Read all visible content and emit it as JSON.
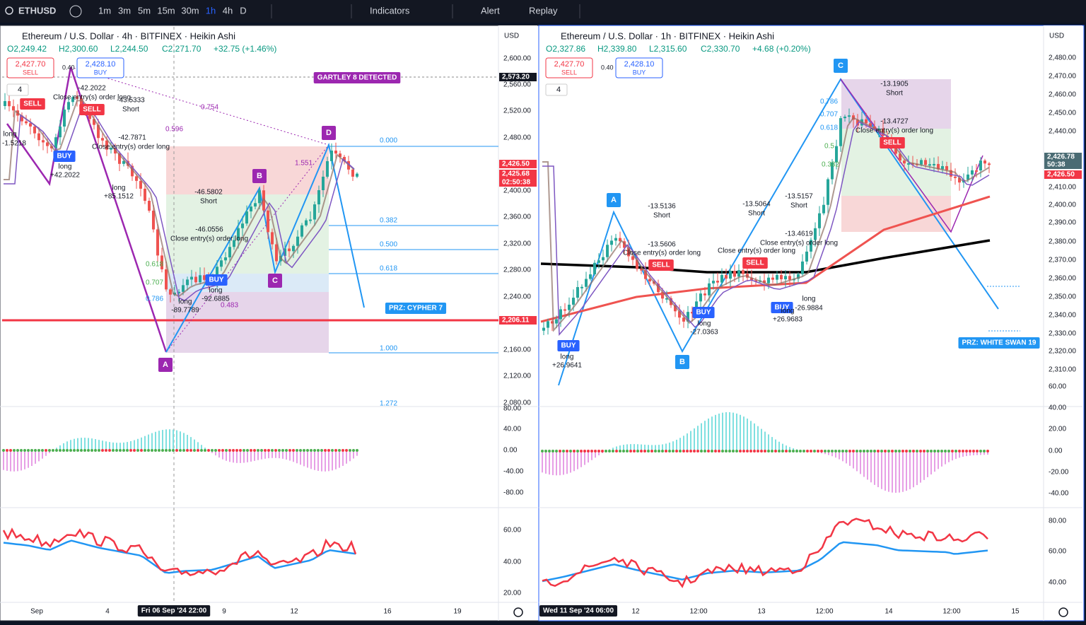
{
  "toolbar": {
    "symbol": "ETHUSD",
    "intervals": [
      "1m",
      "3m",
      "5m",
      "15m",
      "30m",
      "1h",
      "4h",
      "D"
    ],
    "indicators": "Indicators",
    "alert": "Alert",
    "replay": "Replay"
  },
  "panels": [
    {
      "title": "Ethereum / U.S. Dollar · 4h · BITFINEX · Heikin Ashi",
      "ohlc": [
        "O2,249.42",
        "H2,300.60",
        "L2,244.50",
        "C2,271.70",
        "+32.75 (+1.46%)"
      ],
      "sell": {
        "price": "2,427.70",
        "label": "SELL"
      },
      "spread": "0.40",
      "buy": {
        "price": "2,428.10",
        "label": "BUY"
      },
      "layers": "4",
      "currency": "USD",
      "price_axis": [
        "2,600.00",
        "2,560.00",
        "2,520.00",
        "2,480.00",
        "2,440.00",
        "2,400.00",
        "2,360.00",
        "2,320.00",
        "2,280.00",
        "2,240.00",
        "2,160.00",
        "2,120.00",
        "2,080.00"
      ],
      "price_tags": [
        "2,573.20",
        "2,426.50",
        "2,425.68",
        "02:50:38",
        "2,206.11"
      ],
      "pattern_points": [
        "A",
        "B",
        "C",
        "D"
      ],
      "annotations": [
        "GARTLEY 8 DETECTED",
        "PRZ: CYPHER 7",
        "SELL",
        "SELL",
        "BUY",
        "BUY",
        "long",
        "-1.5218",
        "long",
        "+42.2022",
        "-42.2022",
        "Close entry(s) order long",
        "-43.5333",
        "Short",
        "-42.7871",
        "Close entry(s) order long",
        "long",
        "+85.1512",
        "-46.5802",
        "Short",
        "-46.0556",
        "Close entry(s) order long",
        "long",
        "-92.6885",
        "long",
        "-89.7789",
        "0.000",
        "0.382",
        "0.500",
        "0.618",
        "1.000",
        "1.272",
        "0.754",
        "0.596",
        "1.551",
        "0.618",
        "0.707",
        "0.786",
        "0.483"
      ],
      "oscillator_axis": [
        "80.00",
        "40.00",
        "0.00",
        "-40.00",
        "-80.00"
      ],
      "rsi_axis": [
        "60.00",
        "40.00",
        "20.00"
      ],
      "time_axis": [
        "Sep",
        "4",
        "9",
        "12",
        "16",
        "19"
      ],
      "crosshair_time": "Fri 06 Sep '24  22:00"
    },
    {
      "title": "Ethereum / U.S. Dollar · 1h · BITFINEX · Heikin Ashi",
      "ohlc": [
        "O2,327.86",
        "H2,339.80",
        "L2,315.60",
        "C2,330.70",
        "+4.68 (+0.20%)"
      ],
      "sell": {
        "price": "2,427.70",
        "label": "SELL"
      },
      "spread": "0.40",
      "buy": {
        "price": "2,428.10",
        "label": "BUY"
      },
      "layers": "4",
      "currency": "USD",
      "price_axis": [
        "2,480.00",
        "2,470.00",
        "2,460.00",
        "2,450.00",
        "2,440.00",
        "2,410.00",
        "2,400.00",
        "2,390.00",
        "2,380.00",
        "2,370.00",
        "2,360.00",
        "2,350.00",
        "2,340.00",
        "2,330.00",
        "2,320.00",
        "2,310.00"
      ],
      "price_tags": [
        "2,426.78",
        "50:38",
        "2,426.50"
      ],
      "pattern_points": [
        "A",
        "B",
        "C"
      ],
      "annotations": [
        "PRZ: WHITE SWAN 19",
        "SELL",
        "SELL",
        "SELL",
        "BUY",
        "BUY",
        "BUY",
        "-13.5136",
        "Short",
        "-13.5606",
        "Close entry(s) order long",
        "-13.5064",
        "Short",
        "Close entry(s) order long",
        "-13.5157",
        "Short",
        "-13.4619",
        "Close entry(s) order long",
        "-13.1905",
        "Short",
        "-13.4727",
        "Close entry(s) order long",
        "long",
        "-27.0363",
        "long",
        "+26.9683",
        "long",
        "-26.9884",
        "long",
        "+26.9641",
        "0.786",
        "0.707",
        "0.618",
        "0.5",
        "0.382"
      ],
      "oscillator_axis": [
        "60.00",
        "40.00",
        "20.00",
        "0.00",
        "-20.00",
        "-40.00"
      ],
      "rsi_axis": [
        "80.00",
        "60.00",
        "40.00"
      ],
      "time_axis": [
        "12",
        "12:00",
        "13",
        "12:00",
        "14",
        "12:00",
        "15"
      ],
      "crosshair_time": "Wed 11 Sep '24  06:00"
    }
  ]
}
